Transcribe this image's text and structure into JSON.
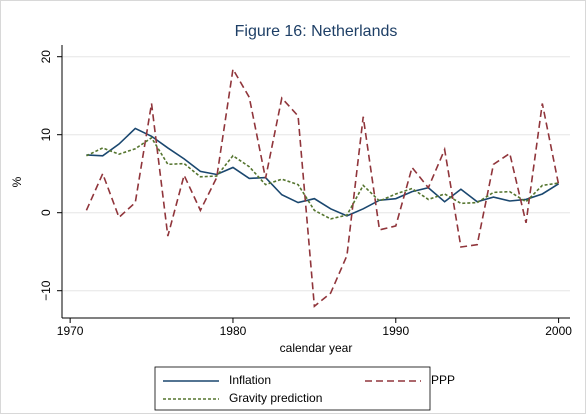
{
  "chart_data": {
    "type": "line",
    "title": "Figure 16: Netherlands",
    "x_label": "calendar year",
    "y_label": "%",
    "x": [
      1971,
      1972,
      1973,
      1974,
      1975,
      1976,
      1977,
      1978,
      1979,
      1980,
      1981,
      1982,
      1983,
      1984,
      1985,
      1986,
      1987,
      1988,
      1989,
      1990,
      1991,
      1992,
      1993,
      1994,
      1995,
      1996,
      1997,
      1998,
      1999,
      2000
    ],
    "series": [
      {
        "name": "Inflation",
        "color": "#1a476f",
        "dash": "solid",
        "values": [
          7.4,
          7.3,
          8.8,
          10.8,
          9.8,
          8.3,
          6.9,
          5.3,
          4.9,
          5.8,
          4.4,
          4.5,
          2.3,
          1.3,
          1.8,
          0.5,
          -0.4,
          0.5,
          1.6,
          1.8,
          2.7,
          3.2,
          1.4,
          3.0,
          1.4,
          2.0,
          1.5,
          1.7,
          2.4,
          3.7
        ]
      },
      {
        "name": "PPP",
        "color": "#90353b",
        "dash": "long",
        "values": [
          0.3,
          5.0,
          -0.6,
          1.3,
          14.0,
          -3.0,
          4.8,
          0.3,
          4.5,
          18.4,
          14.8,
          4.4,
          14.7,
          12.4,
          -12.0,
          -10.3,
          -5.5,
          12.3,
          -2.2,
          -1.7,
          5.8,
          3.2,
          8.1,
          -4.4,
          -4.1,
          6.2,
          7.6,
          -1.3,
          14.0,
          3.6
        ]
      },
      {
        "name": "Gravity prediction",
        "color": "#55752f",
        "dash": "short",
        "values": [
          7.3,
          8.3,
          7.5,
          8.2,
          9.6,
          6.2,
          6.3,
          4.6,
          4.7,
          7.3,
          5.9,
          3.6,
          4.3,
          3.6,
          0.3,
          -0.8,
          -0.3,
          3.5,
          1.5,
          2.4,
          3.1,
          1.7,
          2.4,
          1.2,
          1.3,
          2.6,
          2.7,
          1.4,
          3.5,
          3.8
        ]
      }
    ],
    "xlim": [
      1969.5,
      2000.7
    ],
    "ylim": [
      -13.5,
      21.5
    ],
    "xticks": [
      1970,
      1980,
      1990,
      2000
    ],
    "yticks": [
      {
        "value": -10,
        "label": "−10"
      },
      0,
      10,
      20
    ],
    "grid": true,
    "legend": "bottom"
  }
}
